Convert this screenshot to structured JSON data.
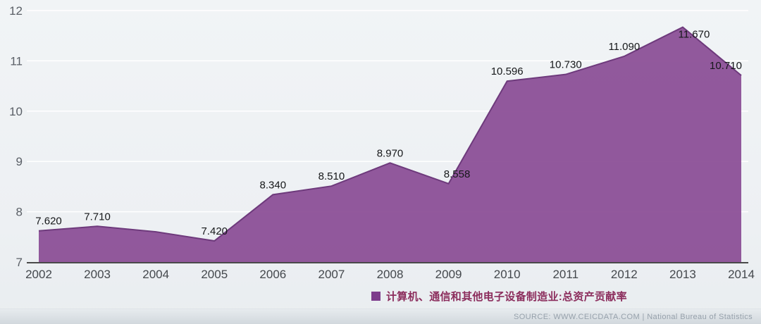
{
  "chart_data": {
    "type": "area",
    "title": "",
    "x": [
      2002,
      2003,
      2004,
      2005,
      2006,
      2007,
      2008,
      2009,
      2010,
      2011,
      2012,
      2013,
      2014
    ],
    "values": [
      7.62,
      7.71,
      7.6,
      7.42,
      8.34,
      8.51,
      8.97,
      8.558,
      10.596,
      10.73,
      11.09,
      11.67,
      10.71
    ],
    "point_labels": [
      "7.620",
      "7.710",
      "",
      "7.420",
      "8.340",
      "8.510",
      "8.970",
      "8.558",
      "10.596",
      "10.730",
      "11.090",
      "11.670",
      "10.710"
    ],
    "ylim": [
      7,
      12
    ],
    "yticks": [
      7,
      8,
      9,
      10,
      11,
      12
    ],
    "grid": true,
    "legend_position": "bottom-center",
    "legend": "计算机、通信和其他电子设备制造业:总资产贡献率",
    "colors": {
      "area_fill": "#8a4c95",
      "area_outline": "#6e3a7c",
      "legend_swatch": "#7d3c8c",
      "legend_text": "#8b2c5c",
      "axis_line": "#4a4a4a"
    }
  },
  "source": {
    "text": "SOURCE: WWW.CEICDATA.COM | National Bureau of Statistics"
  }
}
